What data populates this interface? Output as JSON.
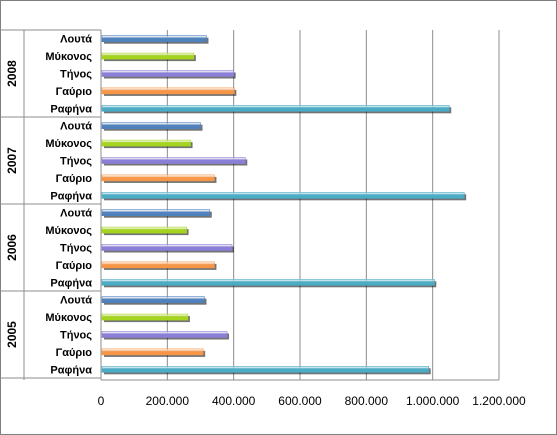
{
  "chart_data": {
    "type": "bar",
    "orientation": "horizontal",
    "title": "",
    "xlabel": "",
    "ylabel": "",
    "xlim": [
      0,
      1200000
    ],
    "x_ticks": [
      "0",
      "200.000",
      "400.000",
      "600.000",
      "800.000",
      "1.000.000",
      "1.200.000"
    ],
    "grid": "vertical",
    "legend": "none",
    "groups": [
      {
        "year": "2008",
        "bars": [
          {
            "label": "Λουτά",
            "value": 318000,
            "color": "#4f81bd"
          },
          {
            "label": "Μύκονος",
            "value": 280000,
            "color": "#a5d41e"
          },
          {
            "label": "Τήνος",
            "value": 400000,
            "color": "#8a7fd6"
          },
          {
            "label": "Γαύριο",
            "value": 402000,
            "color": "#f79646"
          },
          {
            "label": "Ραφήνα",
            "value": 1050000,
            "color": "#4bacc6"
          }
        ]
      },
      {
        "year": "2007",
        "bars": [
          {
            "label": "Λουτά",
            "value": 300000,
            "color": "#4f81bd"
          },
          {
            "label": "Μύκονος",
            "value": 270000,
            "color": "#a5d41e"
          },
          {
            "label": "Τήνος",
            "value": 435000,
            "color": "#8a7fd6"
          },
          {
            "label": "Γαύριο",
            "value": 342000,
            "color": "#f79646"
          },
          {
            "label": "Ραφήνα",
            "value": 1095000,
            "color": "#4bacc6"
          }
        ]
      },
      {
        "year": "2006",
        "bars": [
          {
            "label": "Λουτά",
            "value": 328000,
            "color": "#4f81bd"
          },
          {
            "label": "Μύκονος",
            "value": 258000,
            "color": "#a5d41e"
          },
          {
            "label": "Τήνος",
            "value": 395000,
            "color": "#8a7fd6"
          },
          {
            "label": "Γαύριο",
            "value": 342000,
            "color": "#f79646"
          },
          {
            "label": "Ραφήνα",
            "value": 1005000,
            "color": "#4bacc6"
          }
        ]
      },
      {
        "year": "2005",
        "bars": [
          {
            "label": "Λουτά",
            "value": 312000,
            "color": "#4f81bd"
          },
          {
            "label": "Μύκονος",
            "value": 262000,
            "color": "#a5d41e"
          },
          {
            "label": "Τήνος",
            "value": 380000,
            "color": "#8a7fd6"
          },
          {
            "label": "Γαύριο",
            "value": 308000,
            "color": "#f79646"
          },
          {
            "label": "Ραφήνα",
            "value": 988000,
            "color": "#4bacc6"
          }
        ]
      }
    ]
  }
}
